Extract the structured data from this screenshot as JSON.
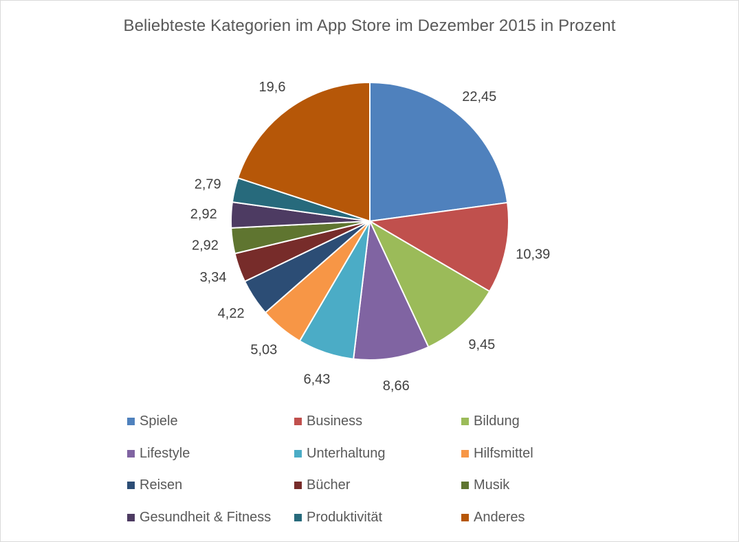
{
  "chart_data": {
    "type": "pie",
    "title": "Beliebteste Kategorien im App Store im Dezember 2015 in Prozent",
    "categories": [
      "Spiele",
      "Business",
      "Bildung",
      "Lifestyle",
      "Unterhaltung",
      "Hilfsmittel",
      "Reisen",
      "Bücher",
      "Musik",
      "Gesundheit & Fitness",
      "Produktivität",
      "Anderes"
    ],
    "values": [
      22.45,
      10.39,
      9.45,
      8.66,
      6.43,
      5.03,
      4.22,
      3.34,
      2.92,
      2.92,
      2.79,
      19.6
    ],
    "value_labels": [
      "22,45",
      "10,39",
      "9,45",
      "8,66",
      "6,43",
      "5,03",
      "4,22",
      "3,34",
      "2,92",
      "2,92",
      "2,79",
      "19,6"
    ],
    "colors": [
      "#4f81bd",
      "#c0504d",
      "#9bbb59",
      "#8064a2",
      "#4bacc6",
      "#f79646",
      "#2c4d75",
      "#772c2a",
      "#5f7530",
      "#4d3b62",
      "#276a7c",
      "#b65708"
    ],
    "legend_position": "bottom",
    "start_angle": "12 o'clock, clockwise"
  }
}
